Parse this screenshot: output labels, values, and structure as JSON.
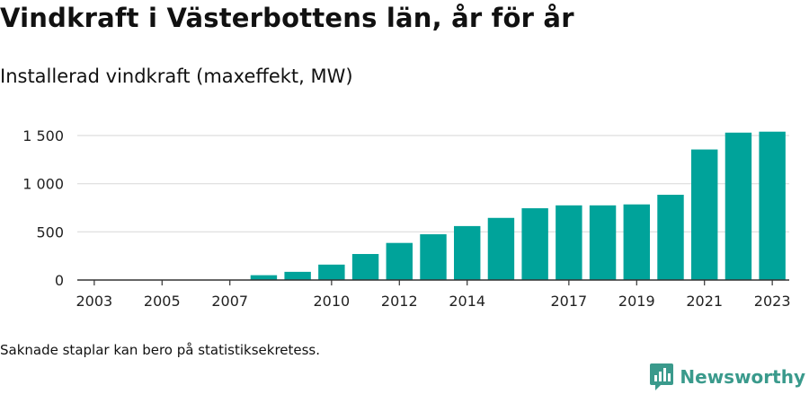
{
  "header": {
    "title": "Vindkraft i Västerbottens län, år för år",
    "subtitle": "Installerad vindkraft (maxeffekt, MW)"
  },
  "footer": {
    "note": "Saknade staplar kan bero på statistiksekretess.",
    "brand": "Newsworthy"
  },
  "colors": {
    "bar": "#00a39a",
    "grid": "#dddddd",
    "axis": "#333333",
    "brand": "#3a9a8c"
  },
  "icons": {
    "brand_logo": "newsworthy-logo-icon"
  },
  "chart_data": {
    "type": "bar",
    "title": "Vindkraft i Västerbottens län, år för år",
    "subtitle": "Installerad vindkraft (maxeffekt, MW)",
    "categories": [
      "2003",
      "2004",
      "2005",
      "2006",
      "2007",
      "2008",
      "2009",
      "2010",
      "2011",
      "2012",
      "2013",
      "2014",
      "2015",
      "2016",
      "2017",
      "2018",
      "2019",
      "2020",
      "2021",
      "2022",
      "2023"
    ],
    "values": [
      0,
      0,
      0,
      0,
      0,
      50,
      85,
      160,
      270,
      385,
      475,
      560,
      645,
      745,
      775,
      775,
      785,
      885,
      1355,
      1530,
      1540
    ],
    "x_tick_labels": [
      "2003",
      "2005",
      "2007",
      "2010",
      "2012",
      "2014",
      "2017",
      "2019",
      "2021",
      "2023"
    ],
    "y_ticks": [
      0,
      500,
      1000,
      1500
    ],
    "y_tick_labels": [
      "0",
      "500",
      "1 000",
      "1 500"
    ],
    "ylim": [
      0,
      1700
    ],
    "xlabel": "",
    "ylabel": "",
    "grid": true,
    "legend": "none"
  }
}
